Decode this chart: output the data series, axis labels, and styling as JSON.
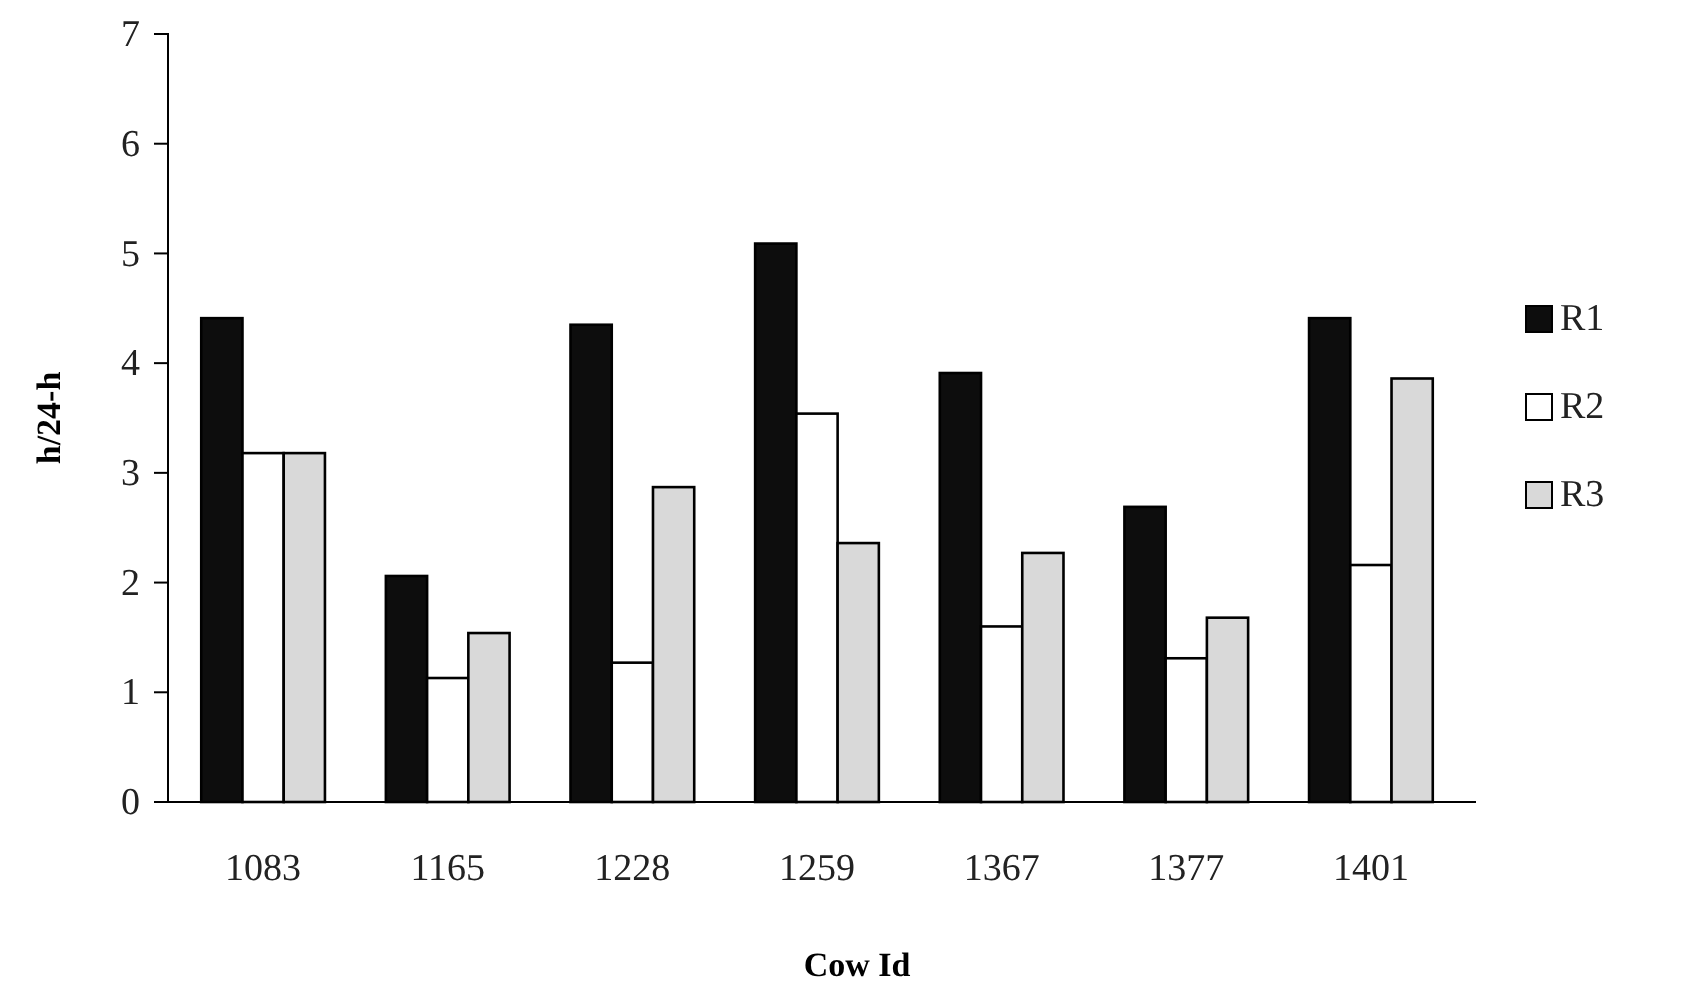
{
  "chart_data": {
    "type": "bar",
    "xlabel": "Cow Id",
    "ylabel": "h/24-h",
    "categories": [
      "1083",
      "1165",
      "1228",
      "1259",
      "1367",
      "1377",
      "1401"
    ],
    "series": [
      {
        "name": "R1",
        "color": "#0d0d0d",
        "values": [
          4.41,
          2.06,
          4.35,
          5.09,
          3.91,
          2.69,
          4.41
        ]
      },
      {
        "name": "R2",
        "color": "#ffffff",
        "values": [
          3.18,
          1.13,
          1.27,
          3.54,
          1.6,
          1.31,
          2.16
        ]
      },
      {
        "name": "R3",
        "color": "#d9d9d9",
        "values": [
          3.18,
          1.54,
          2.87,
          2.36,
          2.27,
          1.68,
          3.86
        ]
      }
    ],
    "ylim": [
      0,
      7
    ],
    "yticks": [
      0,
      1,
      2,
      3,
      4,
      5,
      6,
      7
    ],
    "grid": false,
    "legend": "right"
  }
}
